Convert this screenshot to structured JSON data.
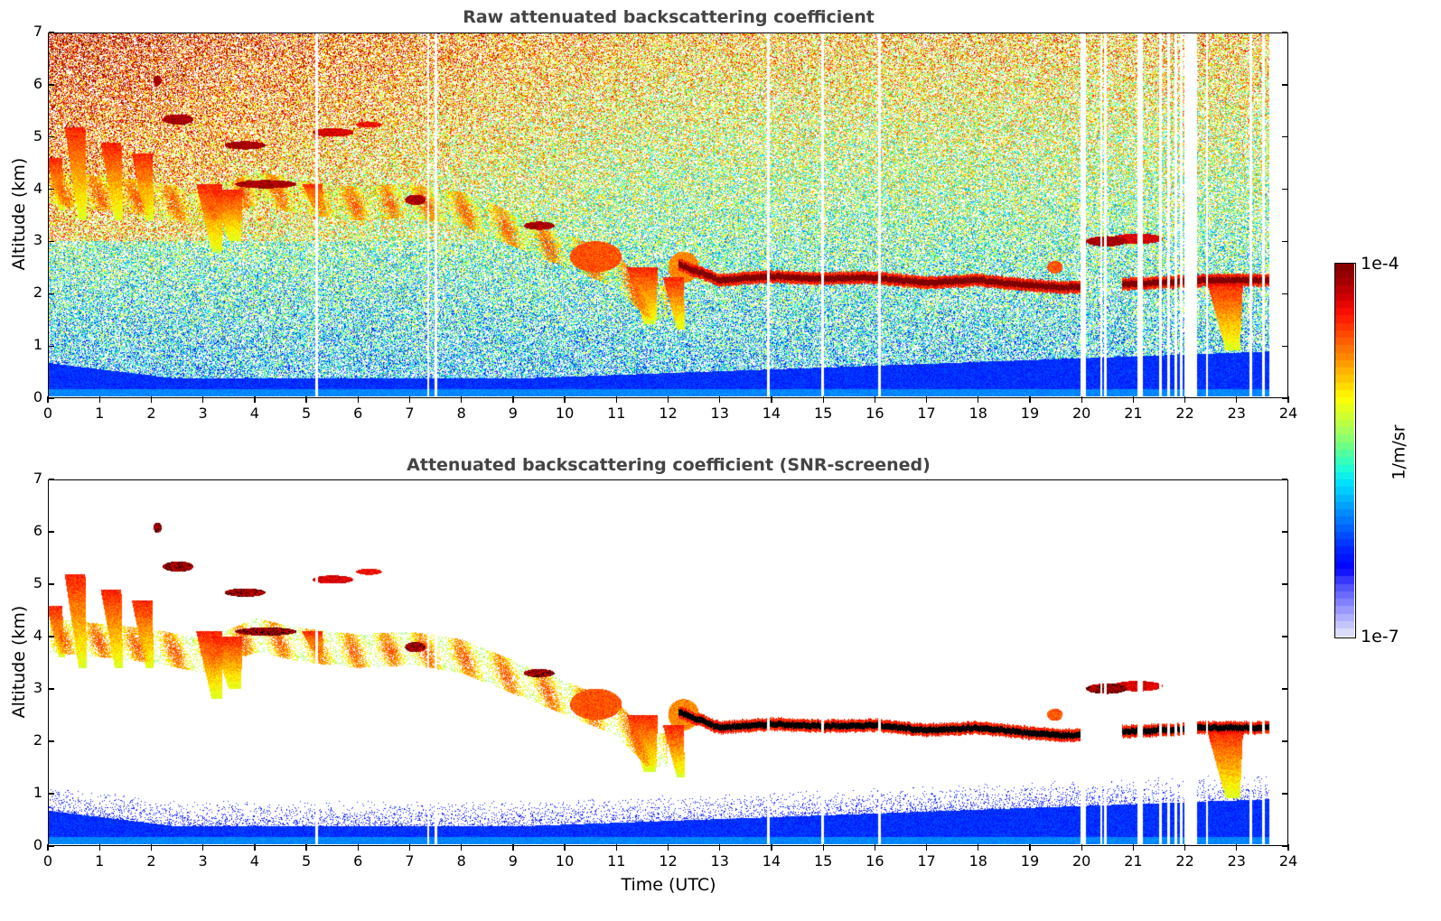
{
  "chart_data": [
    {
      "type": "heatmap",
      "title": "Raw attenuated backscattering coefficient",
      "xlabel": "",
      "ylabel": "Altitude (km)",
      "xlim": [
        0,
        24
      ],
      "ylim": [
        0,
        7
      ],
      "xticks": [
        "0",
        "1",
        "2",
        "3",
        "4",
        "5",
        "6",
        "7",
        "8",
        "9",
        "10",
        "11",
        "12",
        "13",
        "14",
        "15",
        "16",
        "17",
        "18",
        "19",
        "20",
        "21",
        "22",
        "23",
        "24"
      ],
      "yticks": [
        "0",
        "1",
        "2",
        "3",
        "4",
        "5",
        "6",
        "7"
      ],
      "screened": false
    },
    {
      "type": "heatmap",
      "title": "Attenuated backscattering coefficient (SNR-screened)",
      "xlabel": "Time (UTC)",
      "ylabel": "Altitude (km)",
      "xlim": [
        0,
        24
      ],
      "ylim": [
        0,
        7
      ],
      "xticks": [
        "0",
        "1",
        "2",
        "3",
        "4",
        "5",
        "6",
        "7",
        "8",
        "9",
        "10",
        "11",
        "12",
        "13",
        "14",
        "15",
        "16",
        "17",
        "18",
        "19",
        "20",
        "21",
        "22",
        "23",
        "24"
      ],
      "yticks": [
        "0",
        "1",
        "2",
        "3",
        "4",
        "5",
        "6",
        "7"
      ],
      "screened": true
    }
  ],
  "colorbar": {
    "label": "1/m/sr",
    "max_label": "1e-4",
    "min_label": "1e-7",
    "scale": "log",
    "range": [
      1e-07,
      0.0001
    ],
    "colormap": [
      "#e6e6fa",
      "#b4b4ff",
      "#8080ff",
      "#4d4dff",
      "#0000ff",
      "#0020ff",
      "#0050ff",
      "#0080ff",
      "#00b0ff",
      "#00e0ff",
      "#20ffd0",
      "#60ff90",
      "#a0ff60",
      "#d0ff30",
      "#ffff00",
      "#ffd000",
      "#ffa000",
      "#ff7000",
      "#ff4000",
      "#ff1000",
      "#d00000",
      "#a00000",
      "#800000"
    ]
  },
  "features": {
    "cloud_layer_hours": [
      12.2,
      13.0,
      14.0,
      15.0,
      16.0,
      17.0,
      18.0,
      19.0,
      19.7,
      20.7,
      21.5,
      22.5,
      23.6
    ],
    "cloud_layer_km": [
      2.55,
      2.25,
      2.32,
      2.28,
      2.3,
      2.2,
      2.25,
      2.15,
      2.1,
      2.17,
      2.2,
      2.25,
      2.25
    ],
    "data_gap_hours": [
      5.18,
      7.35,
      7.5,
      13.95,
      15.0,
      16.1,
      20.02,
      20.07,
      20.4,
      20.48,
      21.12,
      21.18,
      21.55,
      21.7,
      21.85,
      21.95,
      22.1,
      22.17,
      22.45,
      23.3,
      23.55
    ],
    "end_hour": 23.65
  }
}
